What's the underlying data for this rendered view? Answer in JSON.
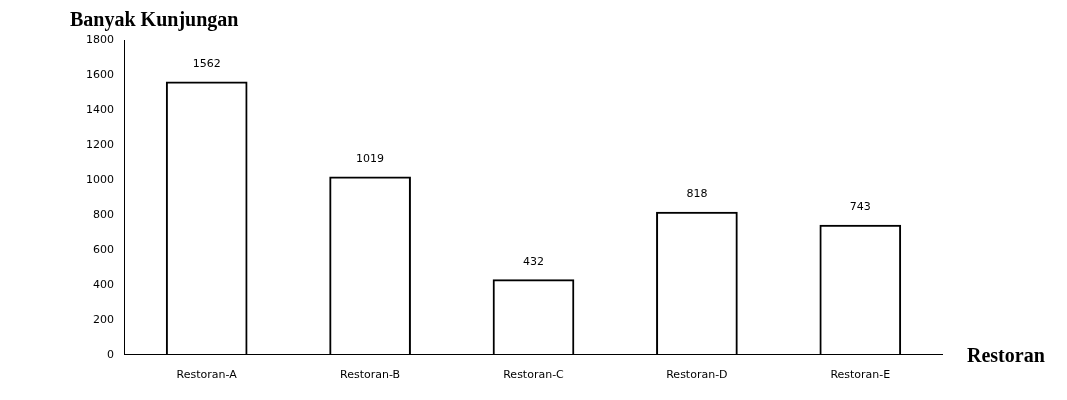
{
  "chart_data": {
    "type": "bar",
    "ylabel": "Banyak Kunjungan",
    "xlabel": "Restoran",
    "categories": [
      "Restoran-A",
      "Restoran-B",
      "Restoran-C",
      "Restoran-D",
      "Restoran-E"
    ],
    "values": [
      1562,
      1019,
      432,
      818,
      743
    ],
    "color": "#000000",
    "ylim": [
      0,
      1800
    ],
    "yticks": [
      0,
      200,
      400,
      600,
      800,
      1000,
      1200,
      1400,
      1600,
      1800
    ],
    "data_labels": true
  }
}
